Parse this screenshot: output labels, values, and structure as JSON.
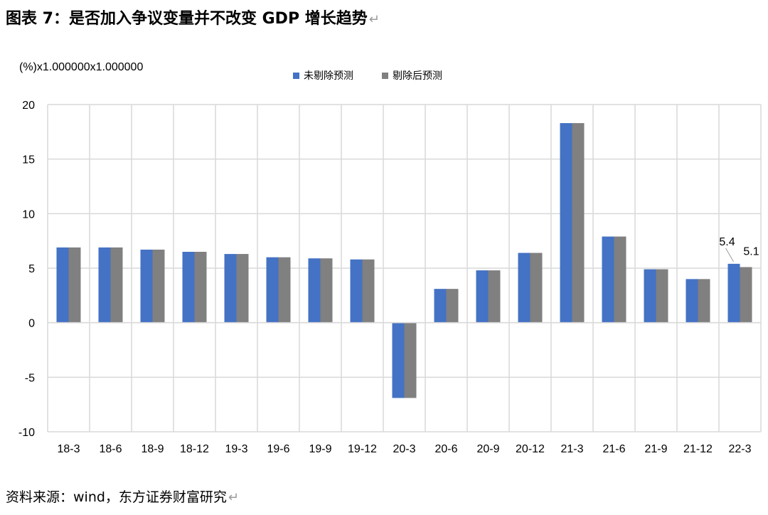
{
  "header": {
    "title": "图表 7：是否加入争议变量并不改变 GDP 增长趋势",
    "return_mark": "↵"
  },
  "footer": {
    "source": "资料来源：wind，东方证券财富研究",
    "return_mark": "↵"
  },
  "chart_data": {
    "type": "bar",
    "ylabel": "(%)x1.000000x1.000000",
    "ylim": [
      -10,
      20
    ],
    "yticks": [
      -10,
      -5,
      0,
      5,
      10,
      15,
      20
    ],
    "grid": true,
    "legend_position": "top-center",
    "categories": [
      "18-3",
      "18-6",
      "18-9",
      "18-12",
      "19-3",
      "19-6",
      "19-9",
      "19-12",
      "20-3",
      "20-6",
      "20-9",
      "20-12",
      "21-3",
      "21-6",
      "21-9",
      "21-12",
      "22-3"
    ],
    "series": [
      {
        "name": "未剔除预测",
        "color": "#4472C4",
        "values": [
          6.9,
          6.9,
          6.7,
          6.5,
          6.3,
          6.0,
          5.9,
          5.8,
          -6.9,
          3.1,
          4.8,
          6.4,
          18.3,
          7.9,
          4.9,
          4.0,
          5.4
        ]
      },
      {
        "name": "剔除后预测",
        "color": "#808080",
        "values": [
          6.9,
          6.9,
          6.7,
          6.5,
          6.3,
          6.0,
          5.9,
          5.8,
          -6.9,
          3.1,
          4.8,
          6.4,
          18.3,
          7.9,
          4.9,
          4.0,
          5.1
        ]
      }
    ],
    "annotations": [
      {
        "category": "22-3",
        "series": 0,
        "text": "5.4"
      },
      {
        "category": "22-3",
        "series": 1,
        "text": "5.1"
      }
    ]
  }
}
